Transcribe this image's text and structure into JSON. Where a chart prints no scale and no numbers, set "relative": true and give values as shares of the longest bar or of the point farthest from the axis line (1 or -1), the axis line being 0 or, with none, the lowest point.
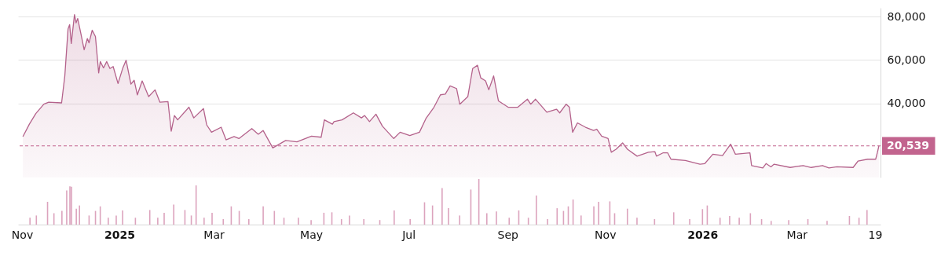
{
  "chart_data": [
    {
      "type": "area",
      "xlim": [
        "2024-11-01",
        "2026-04-20"
      ],
      "ylim": [
        6000,
        84000
      ],
      "yticks": [
        {
          "value": 40000,
          "label": "40,000"
        },
        {
          "value": 60000,
          "label": "60,000"
        },
        {
          "value": 80000,
          "label": "80,000"
        }
      ],
      "grid": "y",
      "tick_labels": "y",
      "x": [
        "2024-11-04",
        "2024-11-08",
        "2024-11-12",
        "2024-11-17",
        "2024-11-20",
        "2024-11-28",
        "2024-11-30",
        "2024-12-02",
        "2024-12-03",
        "2024-12-04",
        "2024-12-06",
        "2024-12-07",
        "2024-12-08",
        "2024-12-10",
        "2024-12-12",
        "2024-12-14",
        "2024-12-15",
        "2024-12-17",
        "2024-12-19",
        "2024-12-21",
        "2024-12-22",
        "2024-12-24",
        "2024-12-26",
        "2024-12-28",
        "2024-12-30",
        "2025-01-02",
        "2025-01-05",
        "2025-01-07",
        "2025-01-10",
        "2025-01-12",
        "2025-01-14",
        "2025-01-17",
        "2025-01-21",
        "2025-01-25",
        "2025-01-28",
        "2025-02-02",
        "2025-02-04",
        "2025-02-06",
        "2025-02-08",
        "2025-02-15",
        "2025-02-18",
        "2025-02-24",
        "2025-02-26",
        "2025-03-01",
        "2025-03-07",
        "2025-03-10",
        "2025-03-15",
        "2025-03-18",
        "2025-03-26",
        "2025-03-30",
        "2025-04-02",
        "2025-04-08",
        "2025-04-16",
        "2025-04-23",
        "2025-05-02",
        "2025-05-08",
        "2025-05-10",
        "2025-05-15",
        "2025-05-16",
        "2025-05-21",
        "2025-05-28",
        "2025-06-02",
        "2025-06-04",
        "2025-06-07",
        "2025-06-11",
        "2025-06-15",
        "2025-06-22",
        "2025-06-26",
        "2025-07-02",
        "2025-07-08",
        "2025-07-12",
        "2025-07-17",
        "2025-07-21",
        "2025-07-24",
        "2025-07-27",
        "2025-07-31",
        "2025-08-02",
        "2025-08-07",
        "2025-08-10",
        "2025-08-13",
        "2025-08-15",
        "2025-08-18",
        "2025-08-20",
        "2025-08-23",
        "2025-08-26",
        "2025-09-01",
        "2025-09-07",
        "2025-09-13",
        "2025-09-15",
        "2025-09-18",
        "2025-09-25",
        "2025-10-01",
        "2025-10-03",
        "2025-10-07",
        "2025-10-09",
        "2025-10-11",
        "2025-10-14",
        "2025-10-19",
        "2025-10-24",
        "2025-10-26",
        "2025-10-29",
        "2025-11-02",
        "2025-11-04",
        "2025-11-07",
        "2025-11-11",
        "2025-11-14",
        "2025-11-20",
        "2025-11-27",
        "2025-12-01",
        "2025-12-02",
        "2025-12-06",
        "2025-12-09",
        "2025-12-11",
        "2025-12-20",
        "2025-12-29",
        "2026-01-01",
        "2026-01-06",
        "2026-01-12",
        "2026-01-17",
        "2026-01-20",
        "2026-01-29",
        "2026-01-30",
        "2026-02-06",
        "2026-02-08",
        "2026-02-11",
        "2026-02-13",
        "2026-02-23",
        "2026-03-03",
        "2026-03-08",
        "2026-03-15",
        "2026-03-19",
        "2026-03-24",
        "2026-04-03",
        "2026-04-06",
        "2026-04-12",
        "2026-04-17",
        "2026-04-18",
        "2026-04-19"
      ],
      "series": [
        {
          "color": "#b4628b",
          "values": [
            24800,
            30500,
            35400,
            39700,
            40600,
            40300,
            52700,
            74300,
            76300,
            67600,
            80900,
            77100,
            79100,
            72000,
            64700,
            69900,
            67900,
            73700,
            70800,
            54100,
            59300,
            56400,
            59300,
            56100,
            57000,
            49200,
            56400,
            59900,
            48900,
            50700,
            44000,
            50400,
            43200,
            46300,
            40600,
            40900,
            27300,
            34500,
            32500,
            38300,
            33400,
            37700,
            30200,
            26800,
            29100,
            23300,
            24800,
            23900,
            28500,
            25900,
            27600,
            19600,
            23000,
            22400,
            25000,
            24500,
            32500,
            30500,
            31700,
            32500,
            35700,
            33400,
            34500,
            31700,
            35100,
            29600,
            23900,
            26800,
            25300,
            26800,
            33100,
            38300,
            44000,
            44300,
            48100,
            46900,
            39700,
            43200,
            56100,
            57600,
            51800,
            50400,
            46300,
            52700,
            41200,
            38300,
            38300,
            42000,
            39700,
            42000,
            36000,
            37400,
            35700,
            39700,
            38300,
            26800,
            31100,
            29100,
            27600,
            28200,
            25000,
            23900,
            17600,
            19000,
            21900,
            19000,
            15800,
            17600,
            17900,
            15800,
            17300,
            17300,
            14400,
            13800,
            12100,
            12400,
            16700,
            16100,
            21300,
            16700,
            17300,
            11500,
            10400,
            12400,
            10900,
            12100,
            10600,
            11500,
            10600,
            11500,
            10400,
            10900,
            10600,
            13500,
            14400,
            14400,
            17300,
            20539
          ]
        }
      ],
      "ref_lines": [
        {
          "axis": "y",
          "value": 20539,
          "label": "20,539",
          "color": "#c2648e",
          "line_style": "dashed"
        }
      ]
    },
    {
      "type": "bar",
      "relative": true,
      "color": "#dca3bd",
      "xlim": [
        "2024-11-01",
        "2026-04-20"
      ],
      "tick_labels": "x",
      "xticks": [
        {
          "value": "2024-11-01",
          "label": "Nov"
        },
        {
          "value": "2025-01-01",
          "label": "2025"
        },
        {
          "value": "2025-03-01",
          "label": "Mar"
        },
        {
          "value": "2025-05-01",
          "label": "May"
        },
        {
          "value": "2025-07-01",
          "label": "Jul"
        },
        {
          "value": "2025-09-01",
          "label": "Sep"
        },
        {
          "value": "2025-11-01",
          "label": "Nov"
        },
        {
          "value": "2026-01-01",
          "label": "2026"
        },
        {
          "value": "2026-03-01",
          "label": "Mar"
        },
        {
          "value": "2026-04-19",
          "label": "19"
        }
      ],
      "x": [
        "2024-11-06",
        "2024-11-10",
        "2024-11-17",
        "2024-11-21",
        "2024-11-26",
        "2024-11-29",
        "2024-12-01",
        "2024-12-02",
        "2024-12-05",
        "2024-12-07",
        "2024-12-13",
        "2024-12-17",
        "2024-12-20",
        "2024-12-25",
        "2024-12-30",
        "2025-01-03",
        "2025-01-11",
        "2025-01-20",
        "2025-01-25",
        "2025-01-29",
        "2025-02-04",
        "2025-02-11",
        "2025-02-15",
        "2025-02-18",
        "2025-02-23",
        "2025-02-28",
        "2025-03-07",
        "2025-03-12",
        "2025-03-17",
        "2025-03-23",
        "2025-04-01",
        "2025-04-08",
        "2025-04-14",
        "2025-04-23",
        "2025-05-01",
        "2025-05-09",
        "2025-05-14",
        "2025-05-20",
        "2025-05-25",
        "2025-06-03",
        "2025-06-13",
        "2025-06-22",
        "2025-07-02",
        "2025-07-11",
        "2025-07-16",
        "2025-07-22",
        "2025-07-26",
        "2025-08-02",
        "2025-08-09",
        "2025-08-14",
        "2025-08-19",
        "2025-08-25",
        "2025-09-02",
        "2025-09-08",
        "2025-09-14",
        "2025-09-19",
        "2025-09-26",
        "2025-10-02",
        "2025-10-06",
        "2025-10-09",
        "2025-10-12",
        "2025-10-17",
        "2025-10-25",
        "2025-10-28",
        "2025-11-04",
        "2025-11-07",
        "2025-11-15",
        "2025-11-21",
        "2025-12-02",
        "2025-12-14",
        "2025-12-24",
        "2026-01-01",
        "2026-01-04",
        "2026-01-12",
        "2026-01-18",
        "2026-01-24",
        "2026-01-31",
        "2026-02-07",
        "2026-02-13",
        "2026-02-24",
        "2026-03-08",
        "2026-03-20",
        "2026-04-03",
        "2026-04-09",
        "2026-04-14"
      ],
      "values": [
        0.15,
        0.2,
        0.5,
        0.25,
        0.3,
        0.75,
        0.84,
        0.83,
        0.35,
        0.42,
        0.2,
        0.3,
        0.4,
        0.15,
        0.2,
        0.31,
        0.15,
        0.32,
        0.15,
        0.26,
        0.44,
        0.32,
        0.2,
        0.86,
        0.15,
        0.26,
        0.12,
        0.4,
        0.3,
        0.12,
        0.4,
        0.3,
        0.15,
        0.15,
        0.1,
        0.26,
        0.27,
        0.12,
        0.2,
        0.12,
        0.1,
        0.31,
        0.12,
        0.49,
        0.42,
        0.8,
        0.36,
        0.2,
        0.77,
        1,
        0.25,
        0.29,
        0.15,
        0.31,
        0.15,
        0.64,
        0.12,
        0.36,
        0.3,
        0.4,
        0.55,
        0.2,
        0.4,
        0.5,
        0.51,
        0.25,
        0.35,
        0.15,
        0.12,
        0.27,
        0.12,
        0.34,
        0.42,
        0.15,
        0.19,
        0.15,
        0.25,
        0.12,
        0.08,
        0.1,
        0.12,
        0.08,
        0.19,
        0.15,
        0.32
      ]
    }
  ]
}
